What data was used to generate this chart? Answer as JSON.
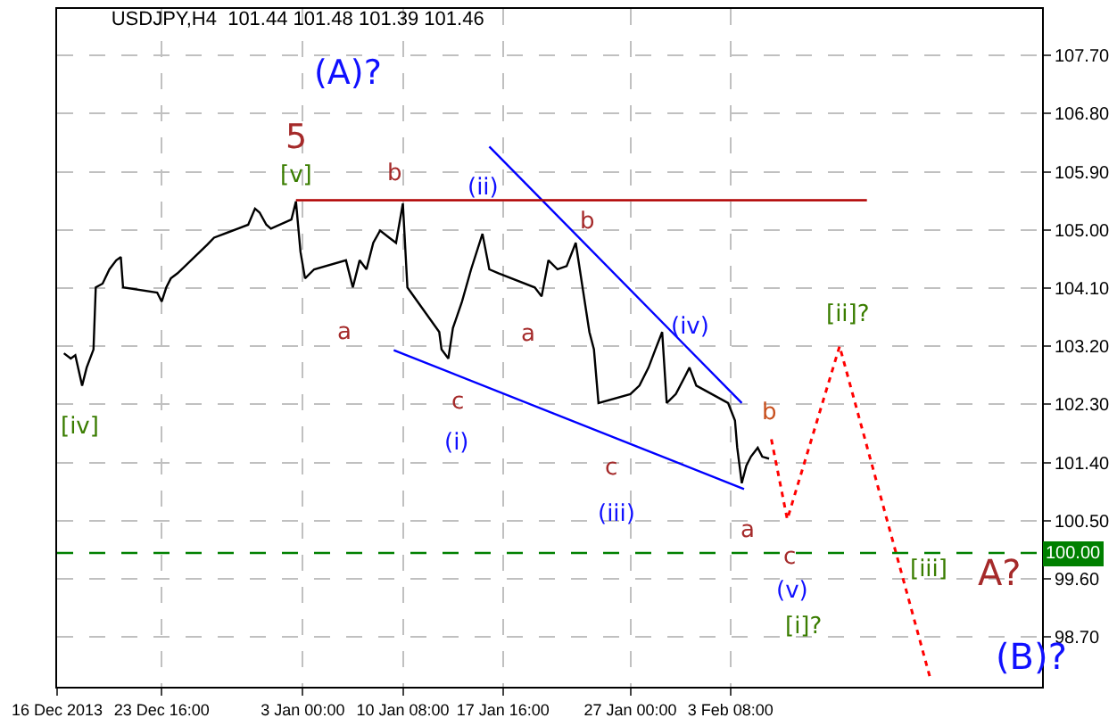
{
  "chart_data": {
    "type": "line",
    "title": "USDJPY,H4  101.44 101.48 101.39 101.46",
    "xlim": [
      "2013-12-16",
      "2014-02-26T04:00"
    ],
    "ylim": [
      97.93,
      108.42
    ],
    "xticks": [
      {
        "value": "2013-12-16",
        "label": "16 Dec 2013"
      },
      {
        "value": "2013-12-23T16:00",
        "label": "23 Dec 16:00"
      },
      {
        "value": "2014-01-03",
        "label": "3 Jan 00:00"
      },
      {
        "value": "2014-01-10T08:00",
        "label": "10 Jan 08:00"
      },
      {
        "value": "2014-01-17T16:00",
        "label": "17 Jan 16:00"
      },
      {
        "value": "2014-01-27",
        "label": "27 Jan 00:00"
      },
      {
        "value": "2014-02-03T08:00",
        "label": "3 Feb 08:00"
      }
    ],
    "yticks": [
      {
        "value": 98.7,
        "label": "98.70"
      },
      {
        "value": 99.6,
        "label": "99.60"
      },
      {
        "value": 100.5,
        "label": "100.50"
      },
      {
        "value": 101.4,
        "label": "101.40"
      },
      {
        "value": 102.3,
        "label": "102.30"
      },
      {
        "value": 103.2,
        "label": "103.20"
      },
      {
        "value": 104.1,
        "label": "104.10"
      },
      {
        "value": 105,
        "label": "105.00"
      },
      {
        "value": 105.9,
        "label": "105.90"
      },
      {
        "value": 106.8,
        "label": "106.80"
      },
      {
        "value": 107.7,
        "label": "107.70"
      }
    ],
    "grid": true,
    "marker": "none",
    "series": [
      {
        "color": "#000000",
        "line_style": "solid",
        "x": [
          "2013-12-16T12:00",
          "2013-12-17T00:00",
          "2013-12-17T08:00",
          "2013-12-17T20:00",
          "2013-12-18T04:00",
          "2013-12-18T16:00",
          "2013-12-18T20:00",
          "2013-12-19T08:00",
          "2013-12-19T20:00",
          "2013-12-20T08:00",
          "2013-12-20T16:00",
          "2013-12-20T20:00",
          "2013-12-23T08:00",
          "2013-12-23T16:00",
          "2013-12-24T00:00",
          "2013-12-24T08:00",
          "2013-12-24T20:00",
          "2013-12-27T00:00",
          "2013-12-27T12:00",
          "2013-12-30T00:00",
          "2013-12-30T12:00",
          "2013-12-30T20:00",
          "2013-12-31T08:00",
          "2013-12-31T16:00",
          "2014-01-02T04:00",
          "2014-01-02T12:00",
          "2014-01-02T20:00",
          "2014-01-03T04:00",
          "2014-01-03T20:00",
          "2014-01-06T04:00",
          "2014-01-06T16:00",
          "2014-01-07T04:00",
          "2014-01-07T16:00",
          "2014-01-08T04:00",
          "2014-01-08T16:00",
          "2014-01-09T08:00",
          "2014-01-09T20:00",
          "2014-01-10T08:00",
          "2014-01-10T16:00",
          "2014-01-13T00:00",
          "2014-01-13T04:00",
          "2014-01-13T16:00",
          "2014-01-14T00:00",
          "2014-01-14T16:00",
          "2014-01-15T08:00",
          "2014-01-16T04:00",
          "2014-01-16T16:00",
          "2014-01-17T08:00",
          "2014-01-20T00:00",
          "2014-01-20T12:00",
          "2014-01-21T00:00",
          "2014-01-21T16:00",
          "2014-01-22T08:00",
          "2014-01-23T00:00",
          "2014-01-23T12:00",
          "2014-01-24T00:00",
          "2014-01-24T08:00",
          "2014-01-24T16:00",
          "2014-01-27T00:00",
          "2014-01-27T16:00",
          "2014-01-28T08:00",
          "2014-01-28T20:00",
          "2014-01-29T08:00",
          "2014-01-29T16:00",
          "2014-01-30T08:00",
          "2014-01-31T00:00",
          "2014-01-31T08:00",
          "2014-01-31T20:00",
          "2014-02-03T04:00",
          "2014-02-03T16:00",
          "2014-02-03T20:00",
          "2014-02-04T04:00",
          "2014-02-04T12:00",
          "2014-02-04T20:00",
          "2014-02-05T08:00",
          "2014-02-05T16:00",
          "2014-02-06T04:00"
        ],
        "values": [
          103.09,
          103.01,
          103.06,
          102.59,
          102.87,
          103.15,
          104.11,
          104.17,
          104.39,
          104.53,
          104.58,
          104.11,
          104.03,
          103.89,
          104.11,
          104.25,
          104.33,
          104.77,
          104.88,
          105.08,
          105.33,
          105.27,
          105.08,
          105.02,
          105.16,
          105.44,
          104.66,
          104.25,
          104.39,
          104.53,
          104.11,
          104.53,
          104.39,
          104.8,
          104.99,
          104.88,
          104.8,
          105.41,
          104.11,
          103.42,
          103.15,
          103.01,
          103.48,
          103.89,
          104.39,
          104.94,
          104.39,
          104.33,
          104.11,
          103.97,
          104.53,
          104.39,
          104.44,
          104.8,
          104.11,
          103.42,
          103.15,
          102.32,
          102.46,
          102.59,
          102.87,
          103.15,
          103.42,
          102.32,
          102.46,
          102.73,
          102.87,
          102.59,
          102.32,
          102.05,
          101.63,
          101.08,
          101.35,
          101.49,
          101.63,
          101.49,
          101.46
        ]
      },
      {
        "color": "#ff0000",
        "line_style": "dotted",
        "x": [
          "2014-02-06T08:00",
          "2014-02-07T12:00",
          "2014-02-11T08:00",
          "2014-02-18T00:00"
        ],
        "values": [
          101.76,
          100.52,
          103.2,
          98.04
        ]
      },
      {
        "color": "#0000ff",
        "line_style": "solid",
        "x": [
          "2014-01-16T16:00",
          "2014-02-04T04:00"
        ],
        "values": [
          106.29,
          102.32
        ]
      },
      {
        "color": "#0000ff",
        "line_style": "solid",
        "x": [
          "2014-01-09T16:00",
          "2014-02-04T08:00"
        ],
        "values": [
          103.14,
          100.99
        ]
      },
      {
        "color": "#b00000",
        "line_style": "solid",
        "x": [
          "2014-01-02T12:00",
          "2014-02-13T08:00"
        ],
        "values": [
          105.46,
          105.46
        ]
      }
    ],
    "ref_lines": [
      {
        "axis": "y",
        "value": 100,
        "label": "100.00",
        "color": "#008000",
        "line_style": "dashed"
      }
    ],
    "annotations": [
      "(A)?",
      {
        "text": "5",
        "x": "2014-01-02T12:00",
        "y": 105.44
      },
      {
        "text": "[v]",
        "x": "2014-01-02T12:00",
        "y": 105.44
      },
      {
        "text": "b",
        "x": "2014-01-10T08:00",
        "y": 105.41
      },
      {
        "text": "(ii)",
        "x": "2014-01-16T04:00",
        "y": 104.94
      },
      {
        "text": "b",
        "x": "2014-01-23T00:00",
        "y": 104.8
      },
      {
        "text": "a",
        "x": "2014-01-06T16:00",
        "y": 104.11
      },
      {
        "text": "a",
        "x": "2014-01-20T12:00",
        "y": 103.97
      },
      {
        "text": "c",
        "x": "2014-01-13T16:00",
        "y": 103.01
      },
      "(i)",
      {
        "text": "[iv]",
        "x": "2013-12-17T20:00",
        "y": 102.59
      },
      {
        "text": "(iv)",
        "x": "2014-01-31T08:00",
        "y": 102.87
      },
      {
        "text": "c",
        "x": "2014-01-24T16:00",
        "y": 102.32
      },
      "(iii)",
      {
        "text": "a",
        "x": "2014-02-04T04:00",
        "y": 101.08
      },
      {
        "text": "b",
        "x": "2014-02-06T08:00",
        "y": 101.76
      },
      {
        "text": "c",
        "x": "2014-02-07T12:00",
        "y": 100.52
      },
      {
        "text": "(v)",
        "x": "2014-02-07T12:00",
        "y": 100.52
      },
      "[i]?",
      {
        "text": "[ii]?",
        "x": "2014-02-11T08:00",
        "y": 103.2
      },
      "[iii]",
      {
        "text": "A?",
        "x": "2014-02-18T00:00",
        "y": 98.04
      },
      {
        "text": "(B)?",
        "x": "2014-02-18T00:00",
        "y": 98.04
      }
    ]
  }
}
